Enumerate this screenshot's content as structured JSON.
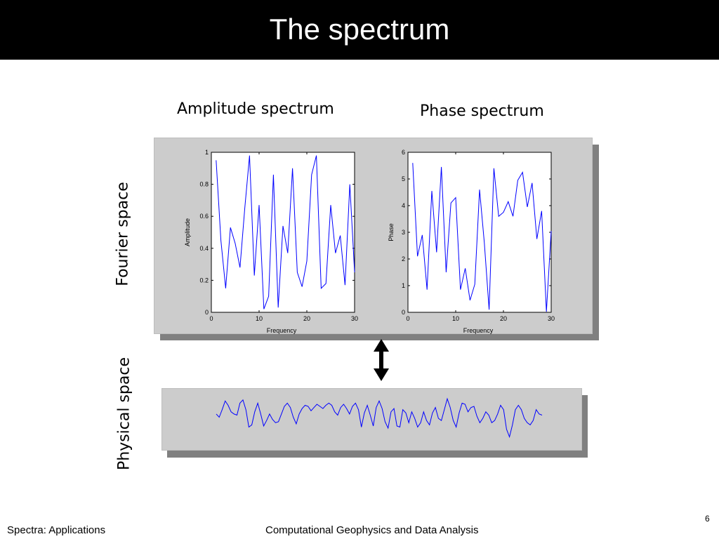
{
  "slide": {
    "title": "The spectrum",
    "footer_left": "Spectra: Applications",
    "footer_center": "Computational Geophysics and Data Analysis",
    "page_number": "6"
  },
  "labels": {
    "amplitude_heading": "Amplitude spectrum",
    "phase_heading": "Phase spectrum",
    "fourier_space": "Fourier space",
    "physical_space": "Physical space"
  },
  "colors": {
    "line": "#0000ff",
    "panel": "#cccccc",
    "shadow": "#808080",
    "title_bar": "#000000"
  },
  "chart_data": [
    {
      "type": "line",
      "xlabel": "Frequency",
      "ylabel": "Amplitude",
      "xlim": [
        0,
        30
      ],
      "ylim": [
        0,
        1
      ],
      "xticks": [
        "0",
        "10",
        "20",
        "30"
      ],
      "yticks": [
        "0",
        "0.2",
        "0.4",
        "0.6",
        "0.8",
        "1"
      ],
      "x": [
        1,
        2,
        3,
        4,
        5,
        6,
        7,
        8,
        9,
        10,
        11,
        12,
        13,
        14,
        15,
        16,
        17,
        18,
        19,
        20,
        21,
        22,
        23,
        24,
        25,
        26,
        27,
        28,
        29,
        30
      ],
      "values": [
        0.95,
        0.45,
        0.15,
        0.53,
        0.43,
        0.28,
        0.65,
        0.98,
        0.23,
        0.67,
        0.02,
        0.1,
        0.86,
        0.03,
        0.54,
        0.37,
        0.9,
        0.25,
        0.16,
        0.32,
        0.86,
        0.98,
        0.15,
        0.18,
        0.67,
        0.37,
        0.48,
        0.17,
        0.8,
        0.25
      ]
    },
    {
      "type": "line",
      "xlabel": "Frequency",
      "ylabel": "Phase",
      "xlim": [
        0,
        30
      ],
      "ylim": [
        0,
        6
      ],
      "xticks": [
        "0",
        "10",
        "20",
        "30"
      ],
      "yticks": [
        "0",
        "1",
        "2",
        "3",
        "4",
        "5",
        "6"
      ],
      "x": [
        1,
        2,
        3,
        4,
        5,
        6,
        7,
        8,
        9,
        10,
        11,
        12,
        13,
        14,
        15,
        16,
        17,
        18,
        19,
        20,
        21,
        22,
        23,
        24,
        25,
        26,
        27,
        28,
        29,
        30
      ],
      "values": [
        5.6,
        2.1,
        2.9,
        0.85,
        4.55,
        2.25,
        5.45,
        1.5,
        4.1,
        4.3,
        0.85,
        1.65,
        0.45,
        1.05,
        4.6,
        2.6,
        0.1,
        5.4,
        3.6,
        3.75,
        4.15,
        3.6,
        4.95,
        5.25,
        3.95,
        4.85,
        2.75,
        3.8,
        0.02,
        3.05
      ]
    },
    {
      "type": "line",
      "x_start": 0,
      "x_end": 100,
      "values": [
        0.1,
        -0.05,
        0.3,
        0.7,
        0.5,
        0.2,
        0.1,
        0.05,
        0.6,
        0.75,
        0.3,
        -0.5,
        -0.4,
        0.2,
        0.6,
        0.1,
        -0.45,
        -0.2,
        0.1,
        -0.15,
        -0.3,
        -0.25,
        0.1,
        0.45,
        0.6,
        0.4,
        -0.05,
        -0.35,
        0.1,
        0.35,
        0.5,
        0.45,
        0.25,
        0.4,
        0.55,
        0.45,
        0.35,
        0.5,
        0.6,
        0.5,
        0.2,
        0.05,
        0.4,
        0.55,
        0.35,
        0.1,
        0.45,
        0.6,
        0.3,
        -0.5,
        0.15,
        0.5,
        0.05,
        -0.45,
        0.4,
        0.7,
        0.35,
        -0.25,
        -0.55,
        0.2,
        0.35,
        -0.45,
        -0.5,
        0.3,
        0.15,
        -0.3,
        0.2,
        -0.1,
        -0.5,
        -0.3,
        0.2,
        -0.2,
        -0.4,
        0.15,
        0.4,
        -0.1,
        -0.2,
        0.3,
        0.8,
        0.4,
        -0.2,
        -0.5,
        0.15,
        0.6,
        0.55,
        0.2,
        0.4,
        0.45,
        0.0,
        -0.3,
        -0.1,
        0.2,
        0.05,
        -0.3,
        -0.2,
        0.1,
        0.5,
        0.3,
        -0.6,
        -0.95,
        -0.4,
        0.3,
        0.5,
        0.3,
        -0.1,
        -0.3,
        -0.4,
        -0.2,
        0.3,
        0.1,
        0.05
      ]
    }
  ]
}
